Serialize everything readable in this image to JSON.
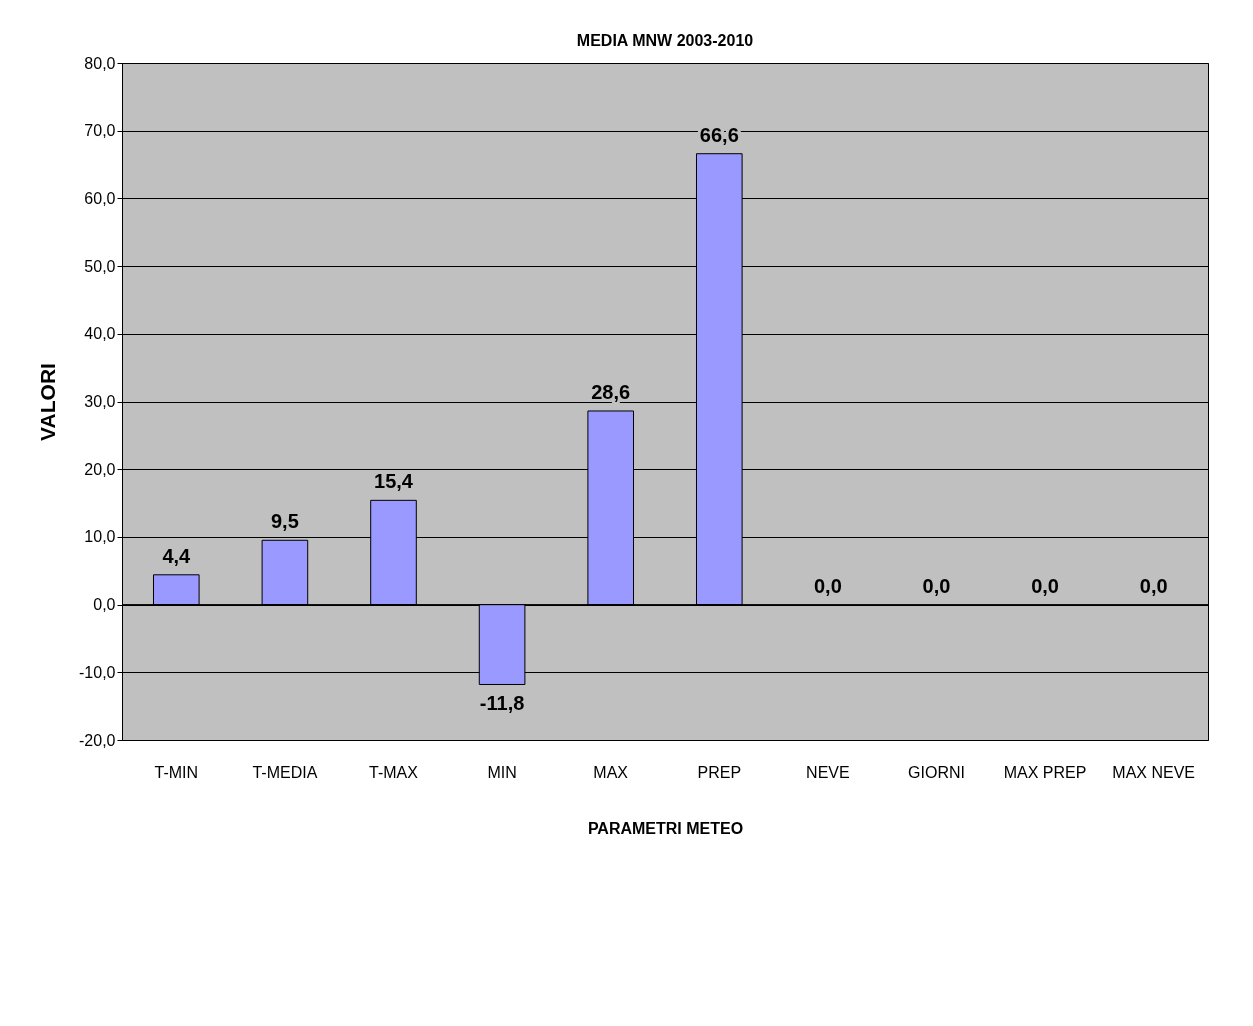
{
  "chart_data": {
    "type": "bar",
    "title": "MEDIA MNW 2003-2010",
    "xlabel": "PARAMETRI METEO",
    "ylabel": "VALORI",
    "categories": [
      "T-MIN",
      "T-MEDIA",
      "T-MAX",
      "MIN",
      "MAX",
      "PREP",
      "NEVE",
      "GIORNI",
      "MAX PREP",
      "MAX NEVE"
    ],
    "values": [
      4.4,
      9.5,
      15.4,
      -11.8,
      28.6,
      66.6,
      0.0,
      0.0,
      0.0,
      0.0
    ],
    "value_labels": [
      "4,4",
      "9,5",
      "15,4",
      "-11,8",
      "28,6",
      "66,6",
      "0,0",
      "0,0",
      "0,0",
      "0,0"
    ],
    "color": "#9999ff",
    "ylim": [
      -20,
      80
    ],
    "yticks": [
      {
        "value": -20,
        "label": "-20,0"
      },
      {
        "value": -10,
        "label": "-10,0"
      },
      {
        "value": 0,
        "label": "0,0"
      },
      {
        "value": 10,
        "label": "10,0"
      },
      {
        "value": 20,
        "label": "20,0"
      },
      {
        "value": 30,
        "label": "30,0"
      },
      {
        "value": 40,
        "label": "40,0"
      },
      {
        "value": 50,
        "label": "50,0"
      },
      {
        "value": 60,
        "label": "60,0"
      },
      {
        "value": 70,
        "label": "70,0"
      },
      {
        "value": 80,
        "label": "80,0"
      }
    ],
    "grid": "y"
  }
}
